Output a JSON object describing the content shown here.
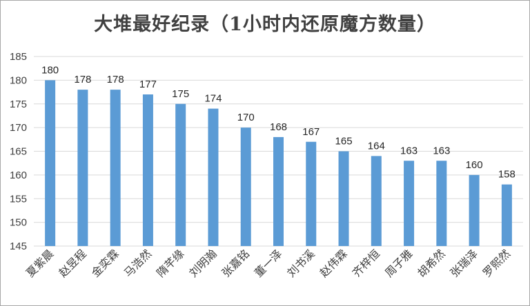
{
  "chart_data": {
    "type": "bar",
    "title": "大堆最好纪录（1小时内还原魔方数量）",
    "xlabel": "",
    "ylabel": "",
    "ylim": [
      145,
      185
    ],
    "y_ticks": [
      145,
      150,
      155,
      160,
      165,
      170,
      175,
      180,
      185
    ],
    "grid": true,
    "legend": "none",
    "bar_color": "#5b9bd5",
    "categories": [
      "夏紫晨",
      "赵昱程",
      "金奕霖",
      "马浩然",
      "隋芊缘",
      "刘明瀚",
      "张嘉铭",
      "董一泽",
      "刘书溪",
      "赵伟霖",
      "齐梓恒",
      "周子雅",
      "胡希然",
      "张瑞泽",
      "罗熙然"
    ],
    "values": [
      180,
      178,
      178,
      177,
      175,
      174,
      170,
      168,
      167,
      165,
      164,
      163,
      163,
      160,
      158
    ]
  }
}
